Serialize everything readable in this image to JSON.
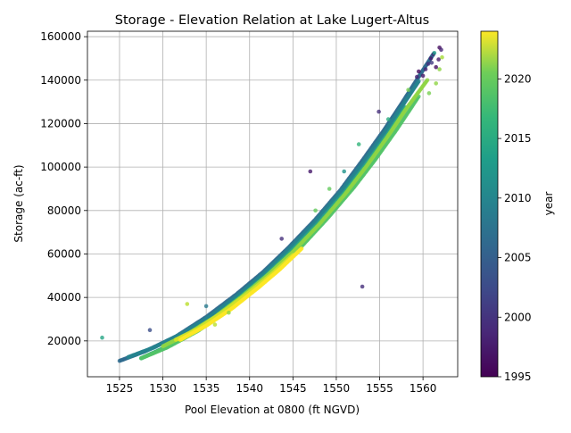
{
  "chart_data": {
    "type": "scatter",
    "title": "Storage - Elevation Relation at Lake Lugert-Altus",
    "xlabel": "Pool Elevation at 0800 (ft NGVD)",
    "ylabel": "Storage (ac-ft)",
    "xlim": [
      1521.3,
      1564.0
    ],
    "ylim": [
      3500,
      162500
    ],
    "xticks": [
      1525,
      1530,
      1535,
      1540,
      1545,
      1550,
      1555,
      1560
    ],
    "yticks": [
      20000,
      40000,
      60000,
      80000,
      100000,
      120000,
      140000,
      160000
    ],
    "grid": true,
    "colorbar": {
      "label": "year",
      "colormap": "viridis",
      "range": [
        1995,
        2024
      ],
      "ticks": [
        1995,
        2000,
        2005,
        2010,
        2015,
        2020
      ]
    },
    "marker_alpha": 0.8,
    "series": [
      {
        "segments": [
          {
            "year": 2005,
            "x": [
              1525.0,
              1528.0,
              1531.5,
              1535.0,
              1538.5,
              1541.5,
              1544.5,
              1547.5,
              1550.5,
              1553.0,
              1555.5,
              1557.5,
              1559.5,
              1561.2
            ],
            "y": [
              10800,
              15300,
              22000,
              31000,
              41500,
              51500,
              63000,
              75500,
              89500,
              103000,
              117000,
              129000,
              141500,
              152000
            ]
          },
          {
            "year": 2008,
            "x": [
              1526.0,
              1529.0,
              1532.5,
              1535.5,
              1538.5,
              1541.5,
              1544.5,
              1547.5,
              1550.5,
              1553.0,
              1555.5,
              1557.5,
              1559.5
            ],
            "y": [
              12500,
              17000,
              24000,
              31500,
              40500,
              50500,
              62000,
              74500,
              88500,
              101500,
              115500,
              127500,
              139500
            ]
          },
          {
            "year": 2012,
            "x": [
              1527.5,
              1530.0,
              1533.0,
              1536.0,
              1539.0,
              1542.0,
              1545.0,
              1548.0,
              1551.0,
              1553.5,
              1556.0,
              1558.0
            ],
            "y": [
              12000,
              16500,
              23000,
              31000,
              40500,
              50500,
              62000,
              74500,
              88500,
              101500,
              115500,
              127500
            ]
          },
          {
            "year": 2016,
            "x": [
              1527.5,
              1530.5,
              1534.0,
              1537.0,
              1540.0,
              1543.0,
              1546.0,
              1549.0,
              1552.0,
              1554.5,
              1557.0,
              1559.5
            ],
            "y": [
              12000,
              17000,
              24500,
              32500,
              42000,
              52000,
              63500,
              76500,
              90500,
              103500,
              117500,
              132500
            ]
          },
          {
            "year": 2019,
            "x": [
              1530.0,
              1533.0,
              1536.0,
              1539.0,
              1542.0,
              1545.0,
              1548.0,
              1551.0,
              1553.5,
              1556.0,
              1558.0,
              1560.5
            ],
            "y": [
              17500,
              23500,
              31000,
              40000,
              50000,
              61000,
              73500,
              87500,
              100500,
              114500,
              126500,
              140000
            ]
          },
          {
            "year": 2022,
            "x": [
              1531.5,
              1534.0,
              1537.0,
              1540.0,
              1542.5,
              1545.0
            ],
            "y": [
              20500,
              25500,
              33500,
              42500,
              50500,
              59500
            ]
          },
          {
            "year": 2024,
            "x": [
              1532.0,
              1535.0,
              1538.0,
              1541.0,
              1543.5,
              1546.0
            ],
            "y": [
              20500,
              27000,
              35000,
              44500,
              53000,
              62500
            ]
          }
        ],
        "points": [
          {
            "x": 1523.0,
            "y": 21500,
            "year": 2012
          },
          {
            "x": 1528.5,
            "y": 25000,
            "year": 2002
          },
          {
            "x": 1532.8,
            "y": 37000,
            "year": 2021
          },
          {
            "x": 1535.0,
            "y": 36000,
            "year": 2007
          },
          {
            "x": 1536.0,
            "y": 27500,
            "year": 2021
          },
          {
            "x": 1537.6,
            "y": 33000,
            "year": 2019
          },
          {
            "x": 1543.7,
            "y": 67000,
            "year": 1999
          },
          {
            "x": 1547.0,
            "y": 98000,
            "year": 1997
          },
          {
            "x": 1547.6,
            "y": 80000,
            "year": 2017
          },
          {
            "x": 1549.2,
            "y": 90000,
            "year": 2017
          },
          {
            "x": 1550.9,
            "y": 98000,
            "year": 2010
          },
          {
            "x": 1552.6,
            "y": 110500,
            "year": 2014
          },
          {
            "x": 1553.0,
            "y": 45000,
            "year": 1999
          },
          {
            "x": 1554.9,
            "y": 125500,
            "year": 1999
          },
          {
            "x": 1556.0,
            "y": 122000,
            "year": 2013
          },
          {
            "x": 1558.3,
            "y": 135500,
            "year": 2018
          },
          {
            "x": 1559.3,
            "y": 141500,
            "year": 1998
          },
          {
            "x": 1559.5,
            "y": 144000,
            "year": 1996
          },
          {
            "x": 1560.0,
            "y": 142000,
            "year": 1997
          },
          {
            "x": 1560.3,
            "y": 145000,
            "year": 1998
          },
          {
            "x": 1560.6,
            "y": 147500,
            "year": 1999
          },
          {
            "x": 1560.9,
            "y": 150000,
            "year": 1997
          },
          {
            "x": 1561.0,
            "y": 148000,
            "year": 2000
          },
          {
            "x": 1561.2,
            "y": 152000,
            "year": 1998
          },
          {
            "x": 1561.5,
            "y": 146000,
            "year": 1996
          },
          {
            "x": 1561.8,
            "y": 149500,
            "year": 1997
          },
          {
            "x": 1561.9,
            "y": 155000,
            "year": 1996
          },
          {
            "x": 1562.1,
            "y": 154000,
            "year": 1998
          },
          {
            "x": 1561.5,
            "y": 138500,
            "year": 2019
          },
          {
            "x": 1561.9,
            "y": 145000,
            "year": 2019
          },
          {
            "x": 1562.2,
            "y": 150500,
            "year": 2020
          },
          {
            "x": 1560.7,
            "y": 134000,
            "year": 2018
          },
          {
            "x": 1561.3,
            "y": 152500,
            "year": 2011
          }
        ]
      }
    ]
  }
}
